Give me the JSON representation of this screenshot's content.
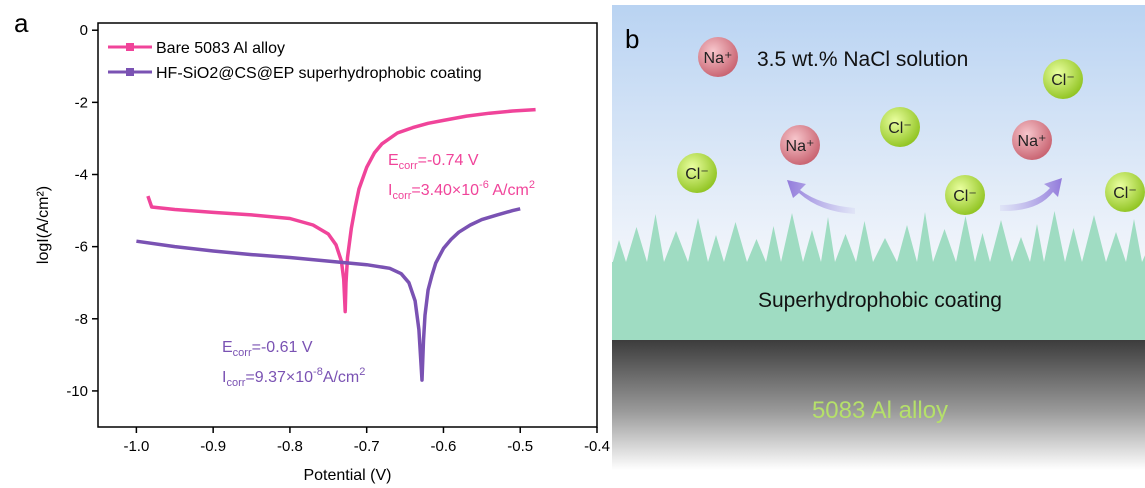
{
  "panel_a": "a",
  "panel_b": "b",
  "chart_data": {
    "type": "line",
    "x_label": "Potential (V)",
    "y_label": "logI(A/cm²)",
    "xlim": [
      -1.05,
      -0.4
    ],
    "ylim": [
      -11,
      0.2
    ],
    "xticks": [
      {
        "value": -1,
        "label": "-1.0"
      },
      -0.9,
      -0.8,
      -0.7,
      -0.6,
      -0.5,
      -0.4
    ],
    "yticks": [
      0,
      -2,
      -4,
      -6,
      -8,
      -10
    ],
    "series": [
      {
        "name": "Bare 5083 Al alloy",
        "color": "#f0449a",
        "x": [
          -0.985,
          -0.98,
          -0.95,
          -0.9,
          -0.85,
          -0.8,
          -0.77,
          -0.75,
          -0.74,
          -0.733,
          -0.73,
          -0.728,
          -0.727,
          -0.725,
          -0.72,
          -0.715,
          -0.71,
          -0.7,
          -0.69,
          -0.68,
          -0.66,
          -0.64,
          -0.62,
          -0.6,
          -0.57,
          -0.54,
          -0.51,
          -0.48
        ],
        "values": [
          -4.6,
          -4.9,
          -4.97,
          -5.05,
          -5.12,
          -5.22,
          -5.4,
          -5.65,
          -5.95,
          -6.4,
          -6.9,
          -7.8,
          -7.0,
          -6.3,
          -5.5,
          -4.9,
          -4.4,
          -3.8,
          -3.4,
          -3.15,
          -2.85,
          -2.7,
          -2.58,
          -2.5,
          -2.38,
          -2.3,
          -2.24,
          -2.2
        ]
      },
      {
        "name": "HF-SiO2@CS@EP superhydrophobic coating",
        "color": "#7a52b3",
        "x": [
          -1.0,
          -0.95,
          -0.9,
          -0.85,
          -0.8,
          -0.75,
          -0.7,
          -0.67,
          -0.655,
          -0.645,
          -0.637,
          -0.632,
          -0.628,
          -0.626,
          -0.624,
          -0.62,
          -0.615,
          -0.61,
          -0.6,
          -0.59,
          -0.58,
          -0.565,
          -0.55,
          -0.53,
          -0.51,
          -0.5
        ],
        "values": [
          -5.85,
          -6.0,
          -6.12,
          -6.22,
          -6.3,
          -6.4,
          -6.5,
          -6.6,
          -6.75,
          -7.0,
          -7.5,
          -8.3,
          -9.7,
          -8.6,
          -7.9,
          -7.2,
          -6.8,
          -6.45,
          -6.05,
          -5.8,
          -5.6,
          -5.4,
          -5.25,
          -5.12,
          -5.0,
          -4.95
        ]
      }
    ],
    "annotations": [
      {
        "color": "#f0449a",
        "lines": [
          [
            {
              "text": "E"
            },
            {
              "text": "corr",
              "sub": true
            },
            {
              "text": "=-0.74 V"
            }
          ],
          [
            {
              "text": "I"
            },
            {
              "text": "corr",
              "sub": true
            },
            {
              "text": "=3.40×10"
            },
            {
              "text": "-6",
              "sup": true
            },
            {
              "text": " A/cm"
            },
            {
              "text": "2",
              "sup": true
            }
          ]
        ]
      },
      {
        "color": "#7a52b3",
        "lines": [
          [
            {
              "text": "E"
            },
            {
              "text": "corr",
              "sub": true
            },
            {
              "text": "=-0.61 V"
            }
          ],
          [
            {
              "text": "I"
            },
            {
              "text": "corr",
              "sub": true
            },
            {
              "text": "=9.37×10"
            },
            {
              "text": "-8",
              "sup": true
            },
            {
              "text": "A/cm"
            },
            {
              "text": "2",
              "sup": true
            }
          ]
        ]
      }
    ]
  },
  "diagram": {
    "solution": "3.5 wt.% NaCl solution",
    "coating": "Superhydrophobic coating",
    "substrate": "5083 Al alloy",
    "ions": [
      "Na⁺",
      "Cl⁻",
      "Cl⁻",
      "Na⁺",
      "Na⁺",
      "Cl⁻",
      "Cl⁻",
      "Cl⁻"
    ]
  }
}
